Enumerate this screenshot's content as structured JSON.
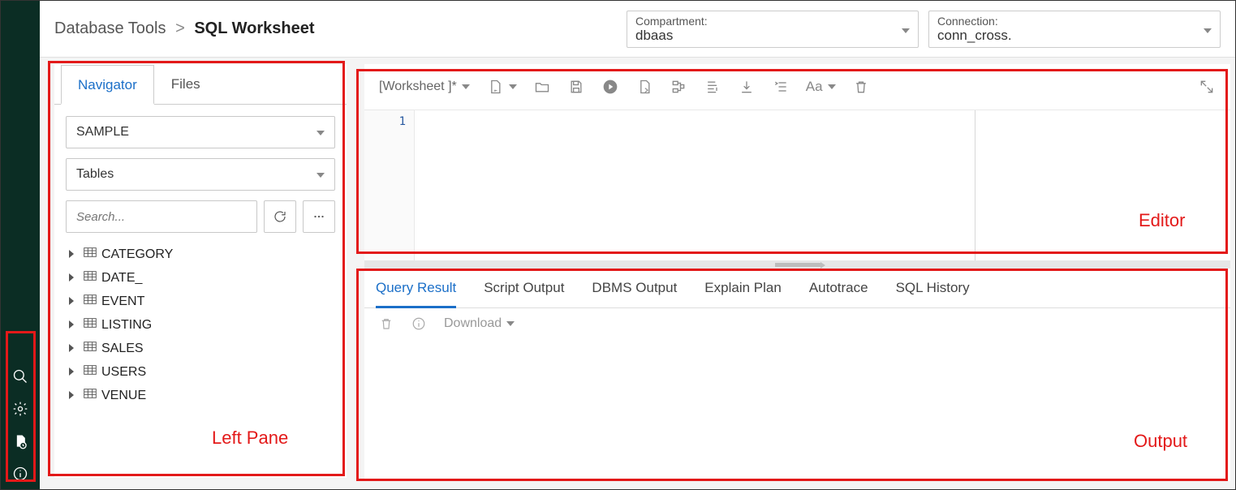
{
  "colors": {
    "rail_bg": "#0b2d24",
    "annotation": "#e31919",
    "link": "#1b6fc8",
    "icon": "#888888",
    "border": "#cccccc",
    "text": "#222222"
  },
  "breadcrumb": {
    "parent": "Database Tools",
    "separator": ">",
    "current": "SQL Worksheet"
  },
  "compartment": {
    "label": "Compartment:",
    "value": "dbaas"
  },
  "connection": {
    "label": "Connection:",
    "value": "conn_cross."
  },
  "left_pane": {
    "tabs": [
      {
        "label": "Navigator",
        "active": true
      },
      {
        "label": "Files",
        "active": false
      }
    ],
    "schema_select": "SAMPLE",
    "objtype_select": "Tables",
    "search_placeholder": "Search...",
    "tables": [
      "CATEGORY",
      "DATE_",
      "EVENT",
      "LISTING",
      "SALES",
      "USERS",
      "VENUE"
    ]
  },
  "editor": {
    "worksheet_name": "[Worksheet ]*",
    "line_numbers": [
      "1"
    ],
    "font_label": "Aa"
  },
  "output": {
    "tabs": [
      {
        "label": "Query Result",
        "active": true
      },
      {
        "label": "Script Output",
        "active": false
      },
      {
        "label": "DBMS Output",
        "active": false
      },
      {
        "label": "Explain Plan",
        "active": false
      },
      {
        "label": "Autotrace",
        "active": false
      },
      {
        "label": "SQL History",
        "active": false
      }
    ],
    "download_label": "Download"
  },
  "annotations": {
    "left_pane": "Left Pane",
    "editor": "Editor",
    "output": "Output"
  }
}
